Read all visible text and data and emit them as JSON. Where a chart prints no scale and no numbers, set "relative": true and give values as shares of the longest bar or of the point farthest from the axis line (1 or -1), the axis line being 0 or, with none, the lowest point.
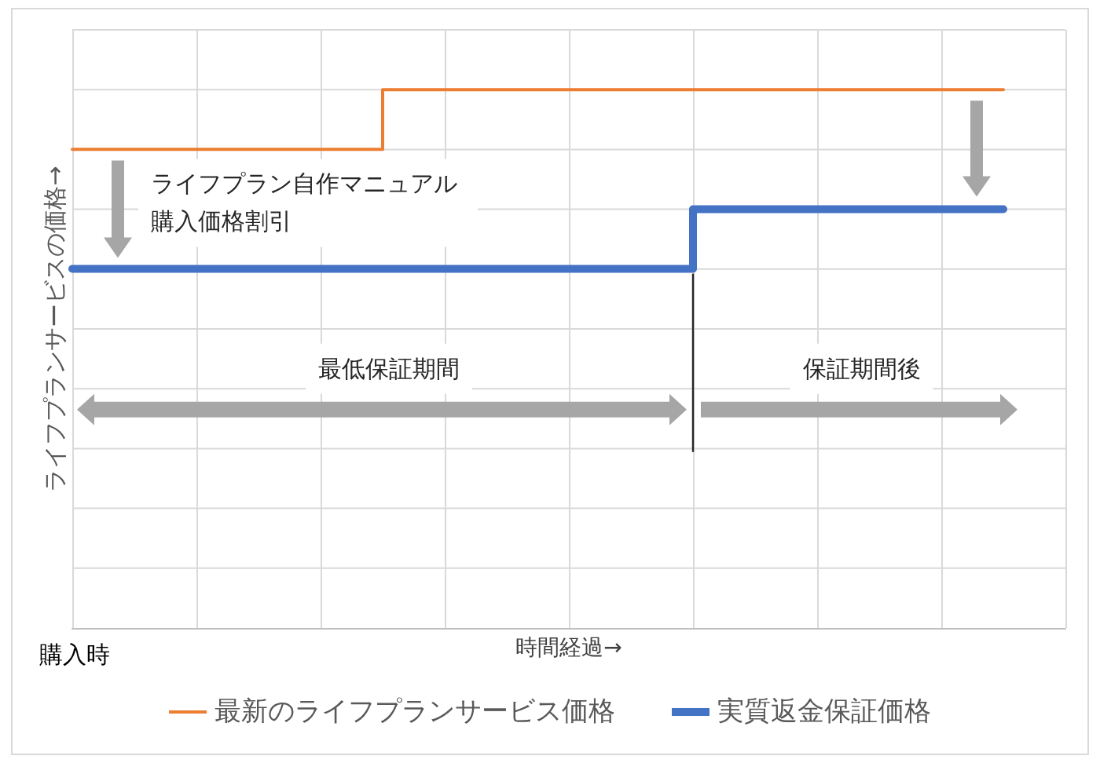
{
  "chart_data": {
    "type": "step",
    "relative": true,
    "xlabel": "時間経過→",
    "ylabel": "ライフプランサービスの価格→",
    "categories": [
      null,
      null,
      null,
      null,
      null,
      null,
      null,
      null,
      null,
      null,
      null,
      null,
      null,
      null,
      null,
      null
    ],
    "series": [
      {
        "name": "最新のライフプランサービス価格",
        "color": "#ed7d31",
        "values": [
          0.889,
          0.889,
          0.889,
          0.889,
          0.889,
          1,
          1,
          1,
          1,
          1,
          1,
          1,
          1,
          1,
          1,
          1
        ]
      },
      {
        "name": "実質返金保証価格",
        "color": "#4472c4",
        "values": [
          0.667,
          0.667,
          0.667,
          0.667,
          0.667,
          0.667,
          0.667,
          0.667,
          0.667,
          0.667,
          0.778,
          0.778,
          0.778,
          0.778,
          0.778,
          0.778
        ]
      }
    ],
    "annotations": [
      "ライフプラン自作マニュアル購入価格割引",
      "最低保証期間",
      "保証期間後",
      "購入時"
    ],
    "grid": true,
    "legend": "bottom",
    "tick_labels": false
  }
}
